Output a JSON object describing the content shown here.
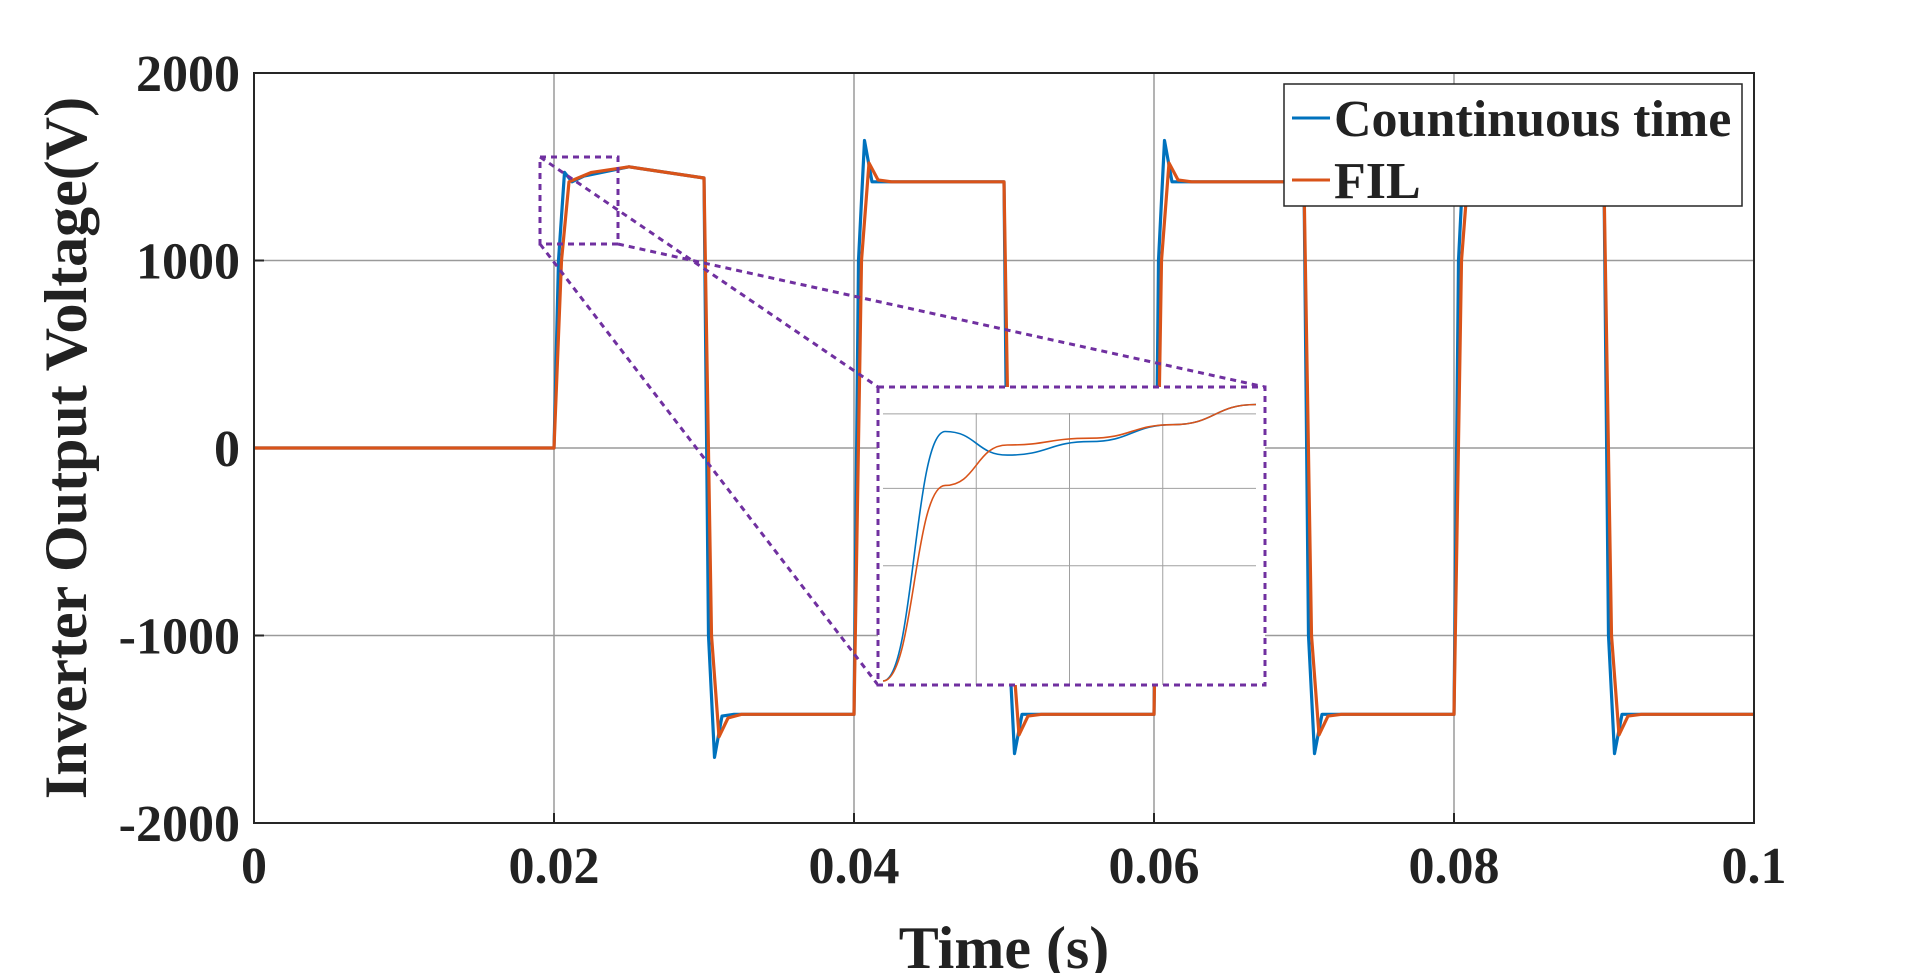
{
  "chart_data": {
    "type": "line",
    "title": "",
    "xlabel": "Time (s)",
    "ylabel": "Inverter Output Voltage(V)",
    "xlim": [
      0,
      0.1
    ],
    "ylim": [
      -2000,
      2000
    ],
    "x_ticks": [
      "0",
      "0.02",
      "0.04",
      "0.06",
      "0.08",
      "0.1"
    ],
    "y_ticks": [
      "2000",
      "1000",
      "0",
      "-1000",
      "-2000"
    ],
    "grid": true,
    "legend_position": "top-right",
    "series": [
      {
        "name": "Countinuous time",
        "color": "#0072BD",
        "x": [
          0,
          0.02,
          0.0203,
          0.0207,
          0.0212,
          0.022,
          0.025,
          0.03,
          0.0303,
          0.0307,
          0.0312,
          0.032,
          0.04,
          0.0403,
          0.0407,
          0.0412,
          0.042,
          0.05,
          0.0503,
          0.0507,
          0.0512,
          0.052,
          0.06,
          0.0603,
          0.0607,
          0.0612,
          0.062,
          0.07,
          0.0703,
          0.0707,
          0.0712,
          0.072,
          0.08,
          0.0803,
          0.0807,
          0.0812,
          0.082,
          0.09,
          0.0903,
          0.0907,
          0.0912,
          0.092,
          0.1
        ],
        "y": [
          0,
          0,
          1000,
          1470,
          1420,
          1450,
          1500,
          1440,
          -1000,
          -1650,
          -1430,
          -1420,
          -1420,
          1000,
          1640,
          1420,
          1420,
          1420,
          -1000,
          -1630,
          -1420,
          -1420,
          -1420,
          1000,
          1640,
          1420,
          1420,
          1420,
          -1000,
          -1630,
          -1420,
          -1420,
          -1420,
          1000,
          1640,
          1420,
          1420,
          1420,
          -1000,
          -1630,
          -1420,
          -1420,
          -1420
        ]
      },
      {
        "name": "FIL",
        "color": "#D95319",
        "x": [
          0,
          0.02,
          0.0205,
          0.021,
          0.0216,
          0.0225,
          0.025,
          0.03,
          0.0305,
          0.031,
          0.0316,
          0.0325,
          0.04,
          0.0405,
          0.041,
          0.0416,
          0.0425,
          0.05,
          0.0505,
          0.051,
          0.0516,
          0.0525,
          0.06,
          0.0605,
          0.061,
          0.0616,
          0.0625,
          0.07,
          0.0705,
          0.071,
          0.0716,
          0.0725,
          0.08,
          0.0805,
          0.081,
          0.0816,
          0.0825,
          0.09,
          0.0905,
          0.091,
          0.0916,
          0.0925,
          0.1
        ],
        "y": [
          0,
          0,
          1000,
          1420,
          1440,
          1470,
          1500,
          1440,
          -1000,
          -1540,
          -1440,
          -1420,
          -1420,
          1000,
          1520,
          1430,
          1420,
          1420,
          -1000,
          -1530,
          -1430,
          -1420,
          -1420,
          1000,
          1520,
          1430,
          1420,
          1420,
          -1000,
          -1530,
          -1430,
          -1420,
          -1420,
          1000,
          1520,
          1430,
          1420,
          1420,
          -1000,
          -1530,
          -1430,
          -1420,
          -1420
        ]
      }
    ],
    "inset": {
      "x": [
        0.02,
        0.02075,
        0.0215,
        0.0225,
        0.0235,
        0.0245
      ],
      "series": [
        {
          "name": "Countinuous time",
          "y": [
            1100,
            1470,
            1435,
            1455,
            1480,
            1510
          ]
        },
        {
          "name": "FIL",
          "y": [
            1100,
            1390,
            1450,
            1460,
            1480,
            1510
          ]
        }
      ]
    }
  }
}
